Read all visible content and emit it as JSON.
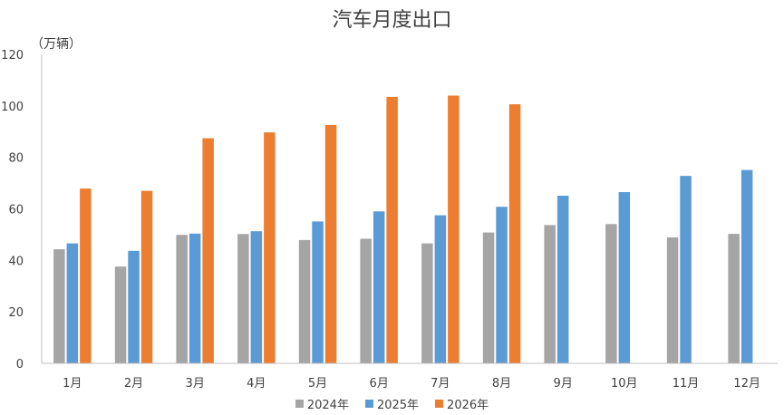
{
  "chart_data": {
    "type": "bar",
    "title": "汽车月度出口",
    "unit_label": "（万辆）",
    "xlabel": "",
    "ylabel": "",
    "ylim": [
      0,
      120
    ],
    "yticks": [
      0,
      20,
      40,
      60,
      80,
      100,
      120
    ],
    "categories": [
      "1月",
      "2月",
      "3月",
      "4月",
      "5月",
      "6月",
      "7月",
      "8月",
      "9月",
      "10月",
      "11月",
      "12月"
    ],
    "series": [
      {
        "name": "2024年",
        "color": "#a5a5a5",
        "values": [
          44.3,
          37.6,
          49.9,
          50.2,
          47.9,
          48.4,
          46.6,
          50.8,
          53.7,
          54.1,
          48.9,
          50.3
        ]
      },
      {
        "name": "2025年",
        "color": "#5b9bd5",
        "values": [
          46.6,
          43.7,
          50.4,
          51.3,
          55.1,
          59.0,
          57.5,
          60.8,
          65.1,
          66.5,
          72.8,
          75.1
        ]
      },
      {
        "name": "2026年",
        "color": "#ed7d31",
        "values": [
          67.9,
          67.0,
          87.4,
          89.7,
          92.6,
          103.5,
          104.0,
          100.6,
          null,
          null,
          null,
          null
        ]
      }
    ],
    "grid": false,
    "legend_position": "bottom"
  }
}
